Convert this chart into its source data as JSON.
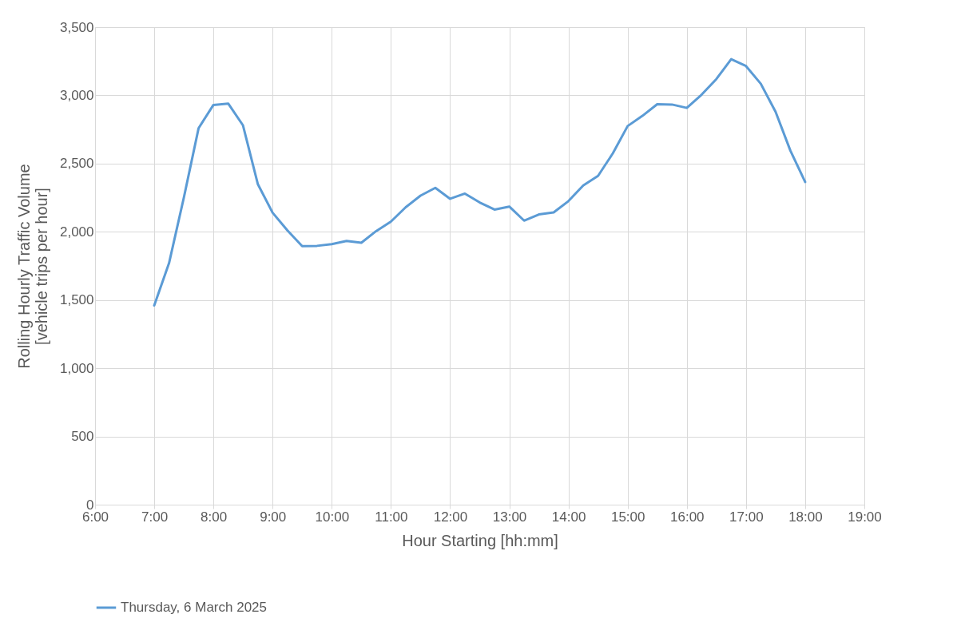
{
  "chart_data": {
    "type": "line",
    "xlabel": "Hour Starting [hh:mm]",
    "ylabel": "Rolling Hourly Traffic Volume [vehicle trips per hour]",
    "x": [
      7,
      7.25,
      7.5,
      7.75,
      8,
      8.25,
      8.5,
      8.75,
      9,
      9.25,
      9.5,
      9.75,
      10,
      10.25,
      10.5,
      10.75,
      11,
      11.25,
      11.5,
      11.75,
      12,
      12.25,
      12.5,
      12.75,
      13,
      13.25,
      13.5,
      13.75,
      14,
      14.25,
      14.5,
      14.75,
      15,
      15.25,
      15.5,
      15.75,
      16,
      16.25,
      16.5,
      16.75,
      17,
      17.25,
      17.5,
      17.75,
      18
    ],
    "series": [
      {
        "name": "Thursday, 6 March 2025",
        "color": "#5b9bd5",
        "values": [
          1460,
          1770,
          2250,
          2760,
          2930,
          2940,
          2780,
          2350,
          2140,
          2010,
          1895,
          1897,
          1910,
          1933,
          1920,
          2005,
          2075,
          2180,
          2265,
          2322,
          2242,
          2280,
          2215,
          2163,
          2185,
          2082,
          2127,
          2142,
          2225,
          2340,
          2410,
          2575,
          2775,
          2850,
          2935,
          2933,
          2908,
          3005,
          3120,
          3265,
          3215,
          3085,
          2880,
          2595,
          2365
        ]
      }
    ],
    "xlim": [
      6,
      19
    ],
    "xticks": [
      {
        "value": 6,
        "label": "6:00"
      },
      {
        "value": 7,
        "label": "7:00"
      },
      {
        "value": 8,
        "label": "8:00"
      },
      {
        "value": 9,
        "label": "9:00"
      },
      {
        "value": 10,
        "label": "10:00"
      },
      {
        "value": 11,
        "label": "11:00"
      },
      {
        "value": 12,
        "label": "12:00"
      },
      {
        "value": 13,
        "label": "13:00"
      },
      {
        "value": 14,
        "label": "14:00"
      },
      {
        "value": 15,
        "label": "15:00"
      },
      {
        "value": 16,
        "label": "16:00"
      },
      {
        "value": 17,
        "label": "17:00"
      },
      {
        "value": 18,
        "label": "18:00"
      },
      {
        "value": 19,
        "label": "19:00"
      }
    ],
    "ylim": [
      0,
      3500
    ],
    "yticks": [
      {
        "value": 0,
        "label": "0"
      },
      {
        "value": 500,
        "label": "500"
      },
      {
        "value": 1000,
        "label": "1,000"
      },
      {
        "value": 1500,
        "label": "1,500"
      },
      {
        "value": 2000,
        "label": "2,000"
      },
      {
        "value": 2500,
        "label": "2,500"
      },
      {
        "value": 3000,
        "label": "3,000"
      },
      {
        "value": 3500,
        "label": "3,500"
      }
    ],
    "grid": true,
    "legend": "bottom",
    "marker": "none",
    "line_style": "solid"
  }
}
